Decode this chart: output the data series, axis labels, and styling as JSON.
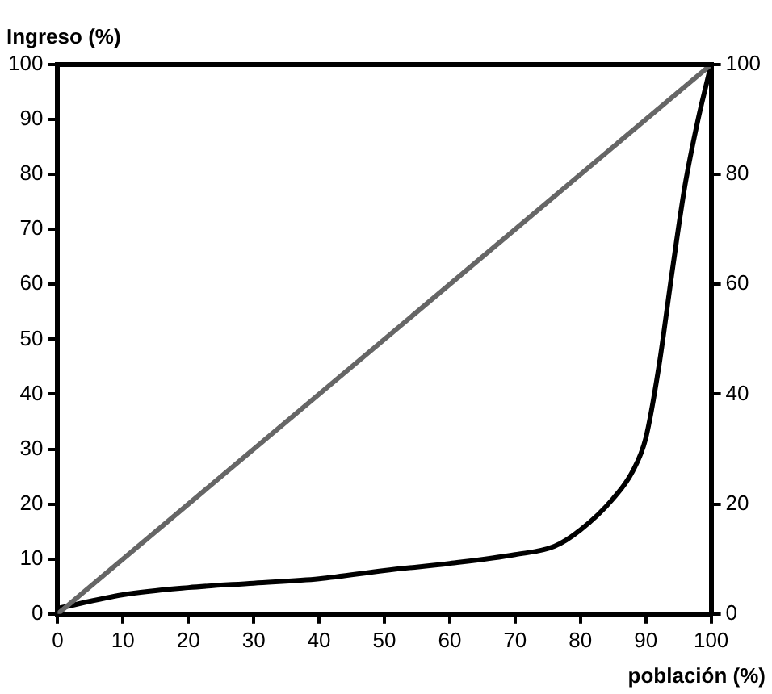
{
  "chart_data": {
    "type": "line",
    "ylabel": "Ingreso (%)",
    "xlabel": "población (%)",
    "xlim": [
      0,
      100
    ],
    "xticks": [
      0,
      10,
      20,
      30,
      40,
      50,
      60,
      70,
      80,
      90,
      100
    ],
    "ylim": [
      0,
      100
    ],
    "yticks": [
      0,
      10,
      20,
      30,
      40,
      50,
      60,
      70,
      80,
      90,
      100
    ],
    "y2lim": [
      0,
      100
    ],
    "y2ticks": [
      0,
      20,
      40,
      60,
      80,
      100
    ],
    "grid": false,
    "legend": false,
    "marker": "none",
    "line_style": "solid",
    "series": [
      {
        "color": "#666666",
        "x": [
          0,
          100
        ],
        "values": [
          0,
          100
        ]
      },
      {
        "color": "#000000",
        "x": [
          0,
          10,
          20,
          30,
          40,
          50,
          60,
          70,
          76,
          80,
          85,
          88,
          90,
          92,
          94,
          96,
          98,
          100
        ],
        "values": [
          1,
          3.5,
          4.8,
          5.6,
          6.4,
          7.9,
          9.2,
          10.8,
          12.3,
          15.3,
          21,
          26,
          32,
          45,
          62,
          78,
          90,
          100
        ]
      }
    ]
  }
}
